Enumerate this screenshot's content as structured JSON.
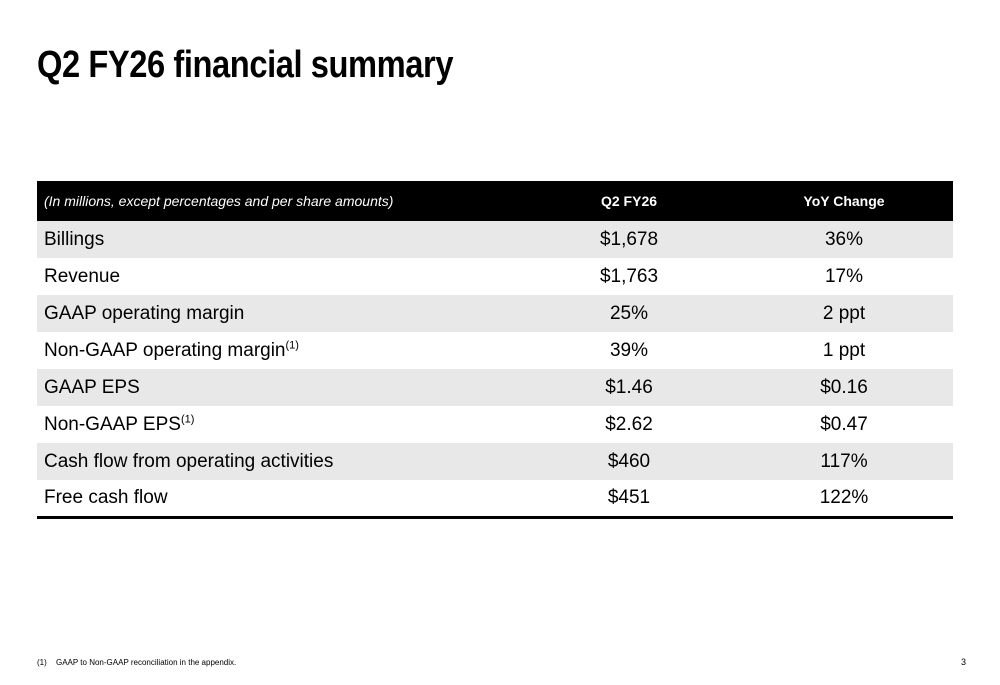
{
  "slide": {
    "title": "Q2 FY26 financial summary",
    "page_number": "3"
  },
  "table": {
    "headers": {
      "metric": "(In millions, except percentages and per share amounts)",
      "q2": "Q2 FY26",
      "yoy": "YoY Change"
    },
    "rows": [
      {
        "label": "Billings",
        "sup": "",
        "q2": "$1,678",
        "yoy": "36%"
      },
      {
        "label": "Revenue",
        "sup": "",
        "q2": "$1,763",
        "yoy": "17%"
      },
      {
        "label": "GAAP operating margin",
        "sup": "",
        "q2": "25%",
        "yoy": "2 ppt"
      },
      {
        "label": "Non-GAAP operating margin",
        "sup": "(1)",
        "q2": "39%",
        "yoy": "1 ppt"
      },
      {
        "label": "GAAP EPS",
        "sup": "",
        "q2": "$1.46",
        "yoy": "$0.16"
      },
      {
        "label": "Non-GAAP EPS",
        "sup": "(1)",
        "q2": "$2.62",
        "yoy": "$0.47"
      },
      {
        "label": "Cash flow from operating activities",
        "sup": "",
        "q2": "$460",
        "yoy": "117%"
      },
      {
        "label": "Free cash flow",
        "sup": "",
        "q2": "$451",
        "yoy": "122%"
      }
    ]
  },
  "footnote": {
    "marker": "(1)",
    "text": "GAAP to Non-GAAP reconciliation in the appendix."
  }
}
